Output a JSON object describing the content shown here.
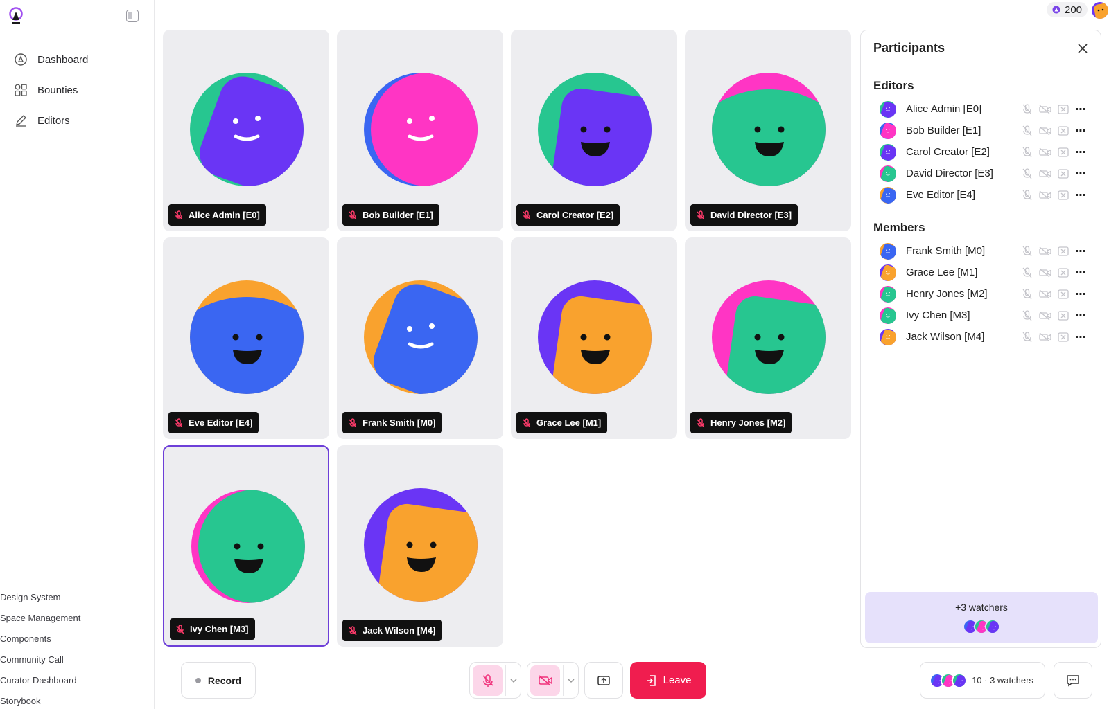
{
  "header": {
    "credits": "200"
  },
  "sidebar": {
    "nav": [
      {
        "label": "Dashboard",
        "icon": "compass-icon"
      },
      {
        "label": "Bounties",
        "icon": "grid-icon"
      },
      {
        "label": "Editors",
        "icon": "pencil-icon"
      }
    ],
    "links": [
      "Design System",
      "Space Management",
      "Components",
      "Community Call",
      "Curator Dashboard",
      "Storybook"
    ]
  },
  "tiles": [
    {
      "name": "Alice Admin [E0]",
      "bg": "#27c690",
      "fg": "#6a35f5",
      "face": "smile",
      "shape": "diamond",
      "active": false
    },
    {
      "name": "Bob Builder [E1]",
      "bg": "#3a66f2",
      "fg": "#ff35c4",
      "face": "smile",
      "shape": "round",
      "active": false
    },
    {
      "name": "Carol Creator [E2]",
      "bg": "#27c690",
      "fg": "#6a35f5",
      "face": "open",
      "shape": "square",
      "active": false
    },
    {
      "name": "David Director [E3]",
      "bg": "#ff35c4",
      "fg": "#27c690",
      "face": "open",
      "shape": "blob",
      "active": false
    },
    {
      "name": "Eve Editor [E4]",
      "bg": "#f9a22e",
      "fg": "#3a66f2",
      "face": "open",
      "shape": "blob",
      "active": false
    },
    {
      "name": "Frank Smith [M0]",
      "bg": "#f9a22e",
      "fg": "#3a66f2",
      "face": "smile",
      "shape": "diamond",
      "active": false
    },
    {
      "name": "Grace Lee [M1]",
      "bg": "#6a35f5",
      "fg": "#f9a22e",
      "face": "open",
      "shape": "square",
      "active": false
    },
    {
      "name": "Henry Jones [M2]",
      "bg": "#ff35c4",
      "fg": "#27c690",
      "face": "open",
      "shape": "square",
      "active": false
    },
    {
      "name": "Ivy Chen [M3]",
      "bg": "#ff35c4",
      "fg": "#27c690",
      "face": "open",
      "shape": "round",
      "active": true
    },
    {
      "name": "Jack Wilson [M4]",
      "bg": "#6a35f5",
      "fg": "#f9a22e",
      "face": "open",
      "shape": "square",
      "active": false
    }
  ],
  "panel": {
    "title": "Participants",
    "editors_title": "Editors",
    "members_title": "Members",
    "editors": [
      {
        "name": "Alice Admin [E0]",
        "bg": "#27c690",
        "fg": "#6a35f5"
      },
      {
        "name": "Bob Builder [E1]",
        "bg": "#3a66f2",
        "fg": "#ff35c4"
      },
      {
        "name": "Carol Creator [E2]",
        "bg": "#27c690",
        "fg": "#6a35f5"
      },
      {
        "name": "David Director [E3]",
        "bg": "#ff35c4",
        "fg": "#27c690"
      },
      {
        "name": "Eve Editor [E4]",
        "bg": "#f9a22e",
        "fg": "#3a66f2"
      }
    ],
    "members": [
      {
        "name": "Frank Smith [M0]",
        "bg": "#f9a22e",
        "fg": "#3a66f2"
      },
      {
        "name": "Grace Lee [M1]",
        "bg": "#6a35f5",
        "fg": "#f9a22e"
      },
      {
        "name": "Henry Jones [M2]",
        "bg": "#ff35c4",
        "fg": "#27c690"
      },
      {
        "name": "Ivy Chen [M3]",
        "bg": "#ff35c4",
        "fg": "#27c690"
      },
      {
        "name": "Jack Wilson [M4]",
        "bg": "#6a35f5",
        "fg": "#f9a22e"
      }
    ],
    "watchers_label": "+3 watchers"
  },
  "footer": {
    "record_label": "Record",
    "leave_label": "Leave",
    "watchers_label": "10 · 3 watchers"
  },
  "colors": {
    "accent": "#6d3fd8",
    "leave": "#f01d4f",
    "watcher_bg": "#e6e1fb",
    "media_off": "#fcd6e9"
  }
}
